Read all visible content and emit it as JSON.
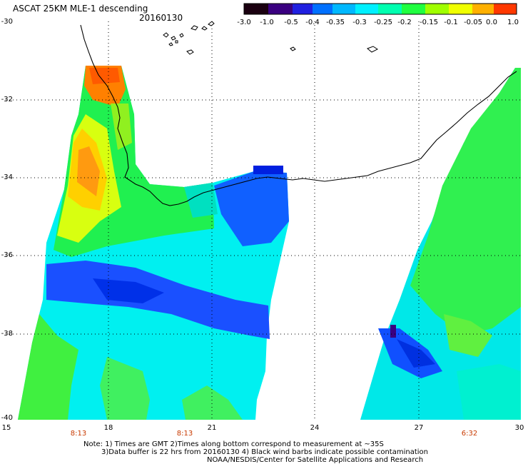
{
  "header": {
    "title": "ASCAT 25KM MLE-1 descending",
    "date": "20160130"
  },
  "colorbar": {
    "ticks": [
      "-3.0",
      "-1.0",
      "-0.5",
      "-0.4",
      "-0.35",
      "-0.3",
      "-0.25",
      "-0.2",
      "-0.15",
      "-0.1",
      "-0.05",
      "0.0",
      "1.0"
    ],
    "colors": [
      "#1a0010",
      "#2a0055",
      "#2a00c8",
      "#0050ff",
      "#00aaff",
      "#00e8ff",
      "#00ffc0",
      "#00ff40",
      "#80ff00",
      "#e8ff00",
      "#ffb000",
      "#ff4000"
    ]
  },
  "axes": {
    "lat_labels": [
      "-30",
      "-32",
      "-34",
      "-36",
      "-38",
      "-40"
    ],
    "lon_labels": [
      "15",
      "18",
      "21",
      "24",
      "27",
      "30"
    ],
    "time_labels": [
      "8:13",
      "8:13",
      "6:32"
    ]
  },
  "notes": {
    "line1": "Note: 1) Times are GMT 2)Times along bottom correspond to measurement at ~35S",
    "line2": "3)Data buffer is 22 hrs from 20160130 4) Black wind barbs indicate possible contamination",
    "line3": "NOAA/NESDIS/Center for Satellite Applications and Research"
  }
}
